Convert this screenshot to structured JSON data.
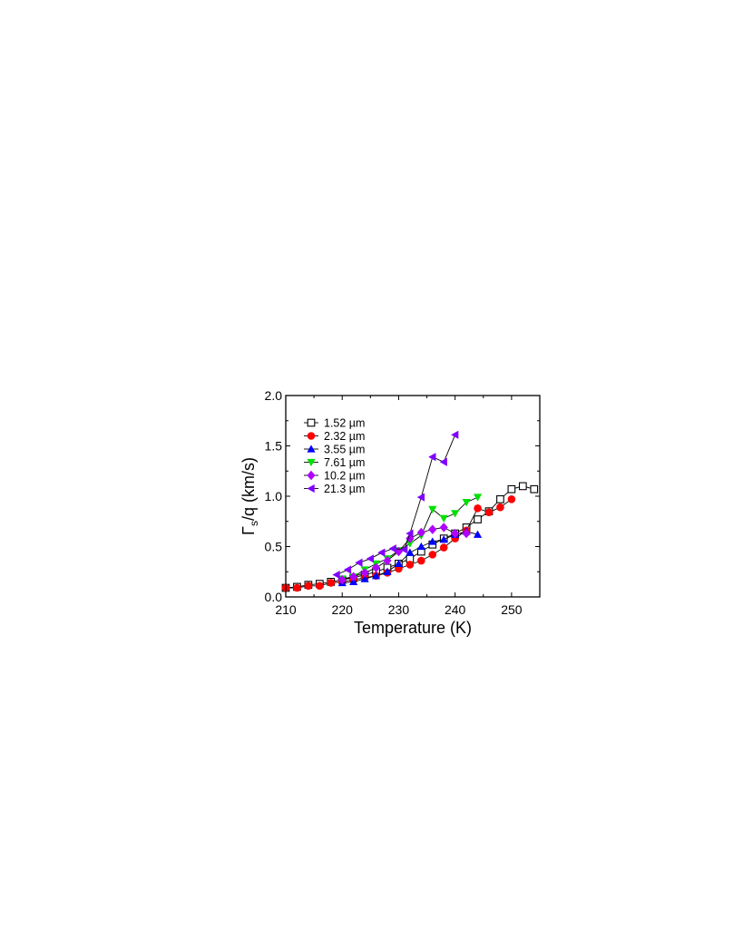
{
  "chart_data": {
    "type": "line",
    "xlabel": "Temperature (K)",
    "ylabel": {
      "main": "Γ",
      "sub": "s",
      "rest": "/q (km/s)"
    },
    "xlim": [
      210,
      255
    ],
    "ylim": [
      0,
      2.0
    ],
    "x_ticks": [
      210,
      220,
      230,
      240,
      250
    ],
    "x_tick_labels": [
      "210",
      "220",
      "230",
      "240",
      "250"
    ],
    "y_ticks": [
      0.0,
      0.5,
      1.0,
      1.5,
      2.0
    ],
    "y_tick_labels": [
      "0.0",
      "0.5",
      "1.0",
      "1.5",
      "2.0"
    ],
    "grid": false,
    "legend_position": "top-left",
    "series": [
      {
        "name": "1.52 µm",
        "color": "#000000",
        "marker": "square-open",
        "x": [
          210,
          212,
          214,
          216,
          218,
          220,
          222,
          224,
          226,
          228,
          230,
          232,
          234,
          236,
          238,
          240,
          242,
          244,
          246,
          248,
          250,
          252,
          254
        ],
        "y": [
          0.09,
          0.1,
          0.12,
          0.13,
          0.15,
          0.17,
          0.19,
          0.22,
          0.25,
          0.29,
          0.33,
          0.38,
          0.45,
          0.52,
          0.58,
          0.63,
          0.69,
          0.77,
          0.85,
          0.97,
          1.07,
          1.1,
          1.07
        ]
      },
      {
        "name": "2.32 µm",
        "color": "#ff0000",
        "marker": "circle",
        "x": [
          210,
          212,
          214,
          216,
          218,
          220,
          222,
          224,
          226,
          228,
          230,
          232,
          234,
          236,
          238,
          240,
          242,
          244,
          246,
          248,
          250
        ],
        "y": [
          0.09,
          0.09,
          0.11,
          0.11,
          0.14,
          0.15,
          0.17,
          0.19,
          0.21,
          0.24,
          0.28,
          0.32,
          0.36,
          0.42,
          0.49,
          0.58,
          0.66,
          0.88,
          0.84,
          0.89,
          0.97
        ]
      },
      {
        "name": "3.55 µm",
        "color": "#0000ff",
        "marker": "triangle-up",
        "x": [
          220,
          222,
          224,
          226,
          228,
          230,
          232,
          234,
          236,
          238,
          240,
          242,
          244
        ],
        "y": [
          0.14,
          0.15,
          0.18,
          0.21,
          0.25,
          0.33,
          0.44,
          0.5,
          0.55,
          0.57,
          0.62,
          0.65,
          0.62
        ]
      },
      {
        "name": "7.61 µm",
        "color": "#00e000",
        "marker": "triangle-down",
        "x": [
          220,
          222,
          224,
          226,
          228,
          230,
          232,
          234,
          236,
          238,
          240,
          242,
          244
        ],
        "y": [
          0.18,
          0.2,
          0.27,
          0.33,
          0.38,
          0.46,
          0.53,
          0.61,
          0.87,
          0.78,
          0.83,
          0.94,
          0.99
        ]
      },
      {
        "name": "10.2 µm",
        "color": "#b000ff",
        "marker": "diamond",
        "x": [
          220,
          222,
          224,
          226,
          228,
          230,
          232,
          234,
          236,
          238,
          240,
          242
        ],
        "y": [
          0.17,
          0.2,
          0.24,
          0.29,
          0.36,
          0.45,
          0.58,
          0.64,
          0.67,
          0.69,
          0.63,
          0.63
        ]
      },
      {
        "name": "21.3 µm",
        "color": "#8000ff",
        "marker": "triangle-left",
        "x": [
          219,
          221,
          223,
          225,
          227,
          229,
          231,
          232,
          234,
          236,
          238,
          240
        ],
        "y": [
          0.22,
          0.27,
          0.34,
          0.38,
          0.44,
          0.48,
          0.47,
          0.63,
          0.99,
          1.39,
          1.34,
          1.61
        ]
      }
    ]
  }
}
